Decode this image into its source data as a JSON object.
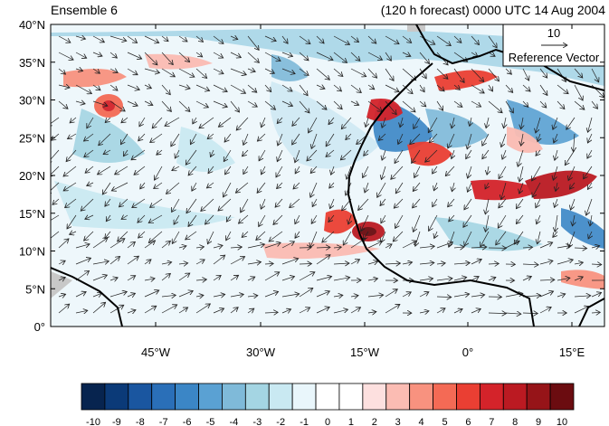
{
  "header": {
    "left_title": "Ensemble 6",
    "right_title": "(120 h forecast) 0000 UTC 14 Aug 2004"
  },
  "map": {
    "lat_labels": [
      "40°N",
      "35°N",
      "30°N",
      "25°N",
      "20°N",
      "15°N",
      "10°N",
      "5°N",
      "0°"
    ],
    "lon_labels": [
      "45°W",
      "30°W",
      "15°W",
      "0°",
      "15°E"
    ],
    "reference_vector": {
      "magnitude": "10",
      "label": "Reference Vector"
    }
  },
  "colorbar": {
    "labels": [
      "-10",
      "-9",
      "-8",
      "-7",
      "-6",
      "-5",
      "-4",
      "-3",
      "-2",
      "-1",
      "0",
      "1",
      "2",
      "3",
      "4",
      "5",
      "6",
      "7",
      "8",
      "9",
      "10"
    ],
    "colors": [
      "#07244f",
      "#0b3a78",
      "#1a56a0",
      "#2a6fb8",
      "#3b86c6",
      "#5aa1d3",
      "#7fbad9",
      "#a4d5e3",
      "#c9e9f2",
      "#e9f6fb",
      "#ffffff",
      "#ffffff",
      "#fde0df",
      "#fbbcb3",
      "#f8927f",
      "#f46a55",
      "#ea3f33",
      "#d4232a",
      "#bb1a22",
      "#961418",
      "#6b0c10"
    ]
  }
}
